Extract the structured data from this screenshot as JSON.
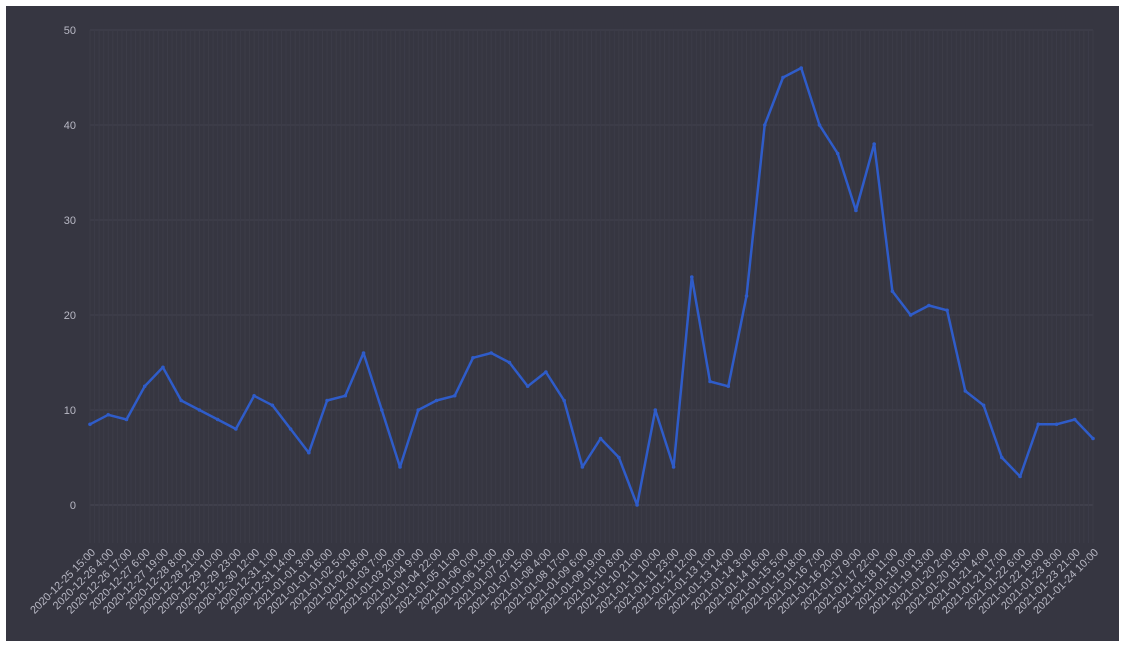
{
  "chart_data": {
    "type": "line",
    "title": "",
    "xlabel": "",
    "ylabel": "",
    "ylim": [
      -4,
      50
    ],
    "y_ticks": [
      0,
      10,
      20,
      30,
      40,
      50
    ],
    "grid": true,
    "legend": "none",
    "x_tick_labels": [
      "2020-12-25 15:00",
      "2020-12-26 4:00",
      "2020-12-26 17:00",
      "2020-12-27 6:00",
      "2020-12-27 19:00",
      "2020-12-28 8:00",
      "2020-12-28 21:00",
      "2020-12-29 10:00",
      "2020-12-29 23:00",
      "2020-12-30 12:00",
      "2020-12-31 1:00",
      "2020-12-31 14:00",
      "2021-01-01 3:00",
      "2021-01-01 16:00",
      "2021-01-02 5:00",
      "2021-01-02 18:00",
      "2021-01-03 7:00",
      "2021-01-03 20:00",
      "2021-01-04 9:00",
      "2021-01-04 22:00",
      "2021-01-05 11:00",
      "2021-01-06 0:00",
      "2021-01-06 13:00",
      "2021-01-07 2:00",
      "2021-01-07 15:00",
      "2021-01-08 4:00",
      "2021-01-08 17:00",
      "2021-01-09 6:00",
      "2021-01-09 19:00",
      "2021-01-10 8:00",
      "2021-01-10 21:00",
      "2021-01-11 10:00",
      "2021-01-11 23:00",
      "2021-01-12 12:00",
      "2021-01-13 1:00",
      "2021-01-13 14:00",
      "2021-01-14 3:00",
      "2021-01-14 16:00",
      "2021-01-15 5:00",
      "2021-01-15 18:00",
      "2021-01-16 7:00",
      "2021-01-16 20:00",
      "2021-01-17 9:00",
      "2021-01-17 22:00",
      "2021-01-18 11:00",
      "2021-01-19 0:00",
      "2021-01-19 13:00",
      "2021-01-20 2:00",
      "2021-01-20 15:00",
      "2021-01-21 4:00",
      "2021-01-21 17:00",
      "2021-01-22 6:00",
      "2021-01-22 19:00",
      "2021-01-23 8:00",
      "2021-01-23 21:00",
      "2021-01-24 10:00"
    ],
    "series": [
      {
        "color": "#2f5cc9",
        "x": [
          "2020-12-25 15:00",
          "2020-12-26 4:00",
          "2020-12-26 17:00",
          "2020-12-27 6:00",
          "2020-12-27 19:00",
          "2020-12-28 8:00",
          "2020-12-28 21:00",
          "2020-12-29 10:00",
          "2020-12-29 23:00",
          "2020-12-30 12:00",
          "2020-12-31 1:00",
          "2020-12-31 14:00",
          "2021-01-01 3:00",
          "2021-01-01 16:00",
          "2021-01-02 5:00",
          "2021-01-02 18:00",
          "2021-01-03 7:00",
          "2021-01-03 20:00",
          "2021-01-04 9:00",
          "2021-01-04 22:00",
          "2021-01-05 11:00",
          "2021-01-06 0:00",
          "2021-01-06 13:00",
          "2021-01-07 2:00",
          "2021-01-07 15:00",
          "2021-01-08 4:00",
          "2021-01-08 17:00",
          "2021-01-09 6:00",
          "2021-01-09 19:00",
          "2021-01-10 8:00",
          "2021-01-10 21:00",
          "2021-01-11 10:00",
          "2021-01-11 23:00",
          "2021-01-12 12:00",
          "2021-01-13 1:00",
          "2021-01-13 14:00",
          "2021-01-14 3:00",
          "2021-01-14 16:00",
          "2021-01-15 5:00",
          "2021-01-15 18:00",
          "2021-01-16 7:00",
          "2021-01-16 20:00",
          "2021-01-17 9:00",
          "2021-01-17 22:00",
          "2021-01-18 11:00",
          "2021-01-19 0:00",
          "2021-01-19 13:00",
          "2021-01-20 2:00",
          "2021-01-20 15:00",
          "2021-01-21 4:00",
          "2021-01-21 17:00",
          "2021-01-22 6:00",
          "2021-01-22 19:00",
          "2021-01-23 8:00",
          "2021-01-23 21:00",
          "2021-01-24 10:00"
        ],
        "values": [
          8.5,
          9.5,
          9.0,
          12.5,
          14.5,
          11.0,
          10.0,
          9.0,
          8.0,
          11.5,
          10.5,
          8.0,
          5.5,
          11.0,
          11.5,
          16.0,
          10.0,
          4.0,
          10.0,
          11.0,
          11.5,
          15.5,
          16.0,
          15.0,
          12.5,
          14.0,
          11.0,
          4.0,
          7.0,
          5.0,
          0.0,
          10.0,
          4.0,
          24.0,
          13.0,
          12.5,
          22.0,
          40.0,
          45.0,
          46.0,
          40.0,
          37.0,
          31.0,
          38.0,
          22.5,
          20.0,
          21.0,
          20.5,
          12.0,
          10.5,
          5.0,
          3.0,
          8.5,
          8.5,
          9.0,
          7.0
        ]
      }
    ]
  }
}
